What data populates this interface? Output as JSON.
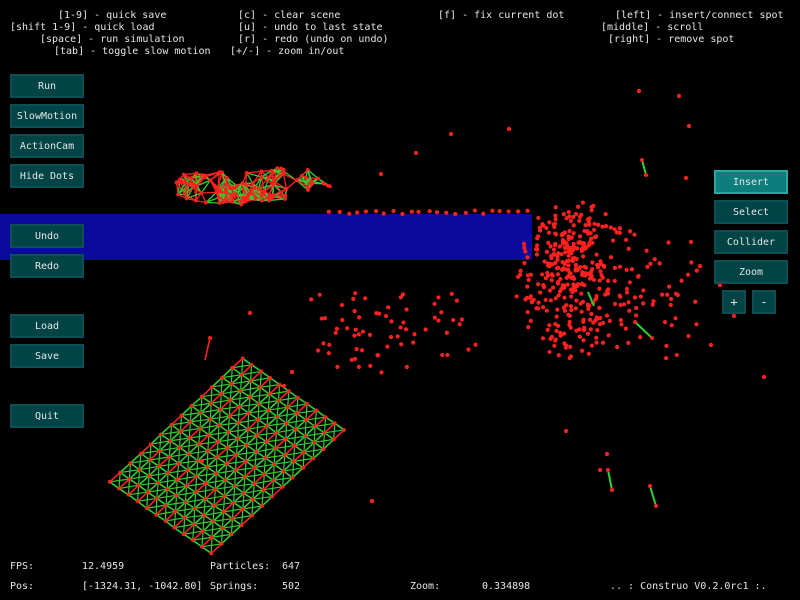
{
  "help": {
    "rows": [
      [
        {
          "label": "[1-9] - quick save"
        },
        {
          "label": "[c] - clear scene"
        },
        {
          "label": "[f] - fix current dot"
        },
        {
          "label": "[left] - insert/connect spot"
        }
      ],
      [
        {
          "label": "[shift 1-9] - quick load"
        },
        {
          "label": "[u] - undo to last state"
        },
        {
          "label": "[middle] - scroll"
        }
      ],
      [
        {
          "label": "[space] - run simulation"
        },
        {
          "label": "[r] - redo (undo on undo)"
        },
        {
          "label": "[right] - remove spot"
        }
      ],
      [
        {
          "label": "[tab] - toggle slow motion"
        },
        {
          "label": "[+/-] - zoom in/out"
        }
      ]
    ]
  },
  "left_buttons": {
    "run": "Run",
    "slowmotion": "SlowMotion",
    "actioncam": "ActionCam",
    "hidedots": "Hide Dots",
    "undo": "Undo",
    "redo": "Redo",
    "load": "Load",
    "save": "Save",
    "quit": "Quit"
  },
  "right_buttons": {
    "insert": "Insert",
    "select": "Select",
    "collider": "Collider",
    "zoom": "Zoom",
    "zoom_in": "+",
    "zoom_out": "-"
  },
  "status": {
    "fps_label": "FPS:",
    "fps_value": "12.4959",
    "particles_label": "Particles:",
    "particles_value": "647",
    "pos_label": "Pos:",
    "pos_value": "[-1324.31, -1042.80]",
    "springs_label": "Springs:",
    "springs_value": "502",
    "zoom_label": "Zoom:",
    "zoom_value": "0.334898",
    "version": ".. : Construo V0.2.0rc1 :."
  },
  "colors": {
    "background": "#000000",
    "particle": "#ff2020",
    "spring_ok": "#30d030",
    "spring_stretched": "#ff2020",
    "collider": "#0a0a9c",
    "button_bg": "#004445",
    "button_active": "#0c7f7d"
  },
  "icons": []
}
